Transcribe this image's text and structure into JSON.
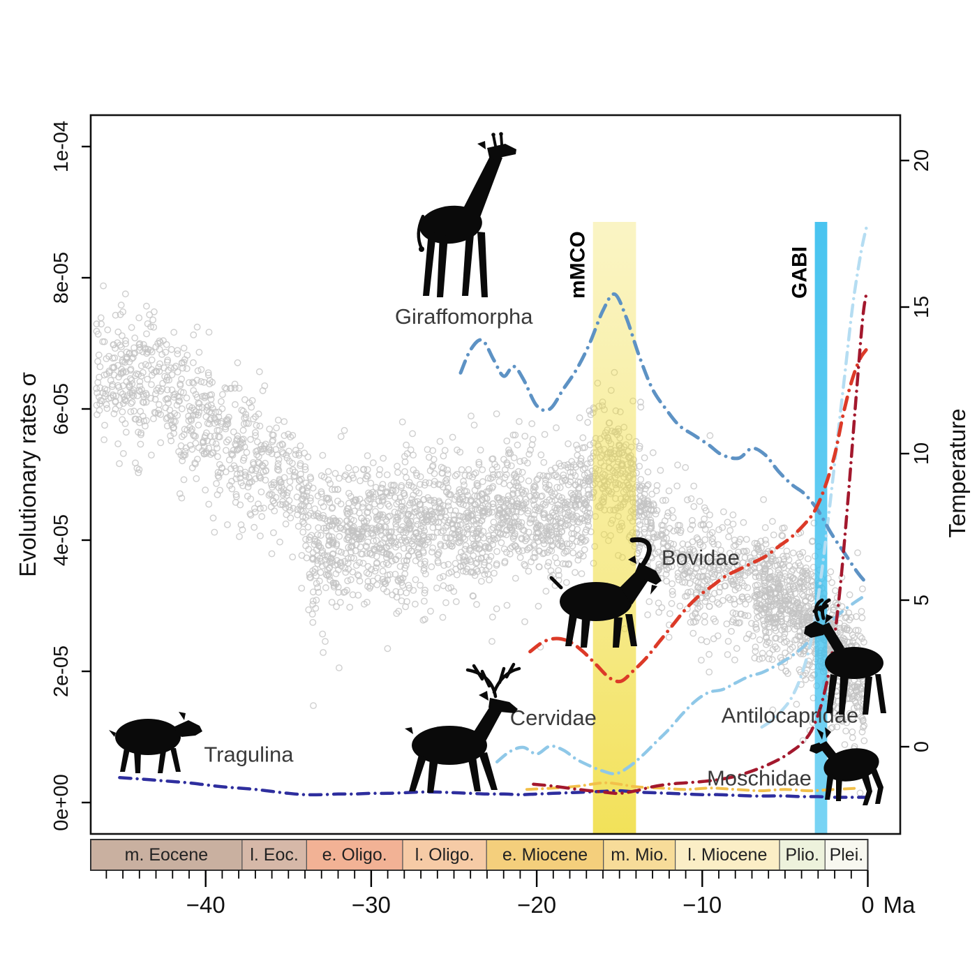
{
  "figure": {
    "x_axis": {
      "tick_labels": [
        "−40",
        "−30",
        "−20",
        "−10",
        "0"
      ],
      "tick_values": [
        -40,
        -30,
        -20,
        -10,
        0
      ],
      "unit_label": "Ma",
      "minor_tick_every_ma": 1
    },
    "y_left_axis": {
      "title": "Evolutionary rates σ",
      "tick_labels": [
        "0e+00",
        "2e-05",
        "4e-05",
        "6e-05",
        "8e-05",
        "1e-04"
      ],
      "tick_values_e5": [
        0,
        2,
        4,
        6,
        8,
        10
      ]
    },
    "y_right_axis": {
      "title": "Temperature",
      "tick_labels": [
        "0",
        "5",
        "10",
        "15",
        "20"
      ],
      "tick_values": [
        0,
        5,
        10,
        15,
        20
      ]
    },
    "epoch_band": [
      {
        "label": "m. Eocene",
        "start_ma": -46.95,
        "end_ma": -37.8,
        "color": "#c9b0a0"
      },
      {
        "label": "l. Eoc.",
        "start_ma": -37.8,
        "end_ma": -33.9,
        "color": "#d6b8a8"
      },
      {
        "label": "e. Oligo.",
        "start_ma": -33.9,
        "end_ma": -28.1,
        "color": "#f2b295"
      },
      {
        "label": "l. Oligo.",
        "start_ma": -28.1,
        "end_ma": -23.03,
        "color": "#f6cba6"
      },
      {
        "label": "e. Miocene",
        "start_ma": -23.03,
        "end_ma": -15.97,
        "color": "#f4cf7c"
      },
      {
        "label": "m. Mio.",
        "start_ma": -15.97,
        "end_ma": -11.63,
        "color": "#f7dc99"
      },
      {
        "label": "l. Miocene",
        "start_ma": -11.63,
        "end_ma": -5.33,
        "color": "#fbeec6"
      },
      {
        "label": "Plio.",
        "start_ma": -5.33,
        "end_ma": -2.58,
        "color": "#edf2dc"
      },
      {
        "label": "Plei.",
        "start_ma": -2.58,
        "end_ma": 0,
        "color": "#f8f8f0"
      }
    ],
    "events": [
      {
        "label": "mMCO",
        "start_ma": -16.6,
        "end_ma": -14.0,
        "color": "#f0dc3c"
      },
      {
        "label": "GABI",
        "start_ma": -3.2,
        "end_ma": -2.45,
        "color": "#3fc1ef"
      }
    ]
  },
  "chart_data": {
    "type": "scatter+line",
    "xlabel": "Ma",
    "ylabel_left": "Evolutionary rates σ",
    "ylabel_right": "Temperature",
    "x_range_ma": [
      -46.95,
      1.96
    ],
    "y_left_range_e5": [
      -0.48,
      10.48
    ],
    "y_right_range_c": [
      -2.98,
      21.55
    ],
    "scatter": {
      "marker": "open-circle",
      "color": "#c3c3c3",
      "count_main": 2600,
      "count_mid_extra": 700,
      "count_right_extra": 500,
      "noise_sd_c": 1.1,
      "temperature_trend_ma_c": [
        [
          -46.9,
          12.0
        ],
        [
          -46,
          12.3
        ],
        [
          -45,
          12.6
        ],
        [
          -44,
          12.2
        ],
        [
          -43.5,
          13.0
        ],
        [
          -43,
          12.4
        ],
        [
          -42,
          12.0
        ],
        [
          -41,
          11.4
        ],
        [
          -40,
          11.0
        ],
        [
          -39,
          10.5
        ],
        [
          -38.5,
          10.8
        ],
        [
          -38,
          10.1
        ],
        [
          -37,
          9.7
        ],
        [
          -36,
          9.4
        ],
        [
          -35,
          9.4
        ],
        [
          -34.5,
          9.0
        ],
        [
          -34,
          8.0
        ],
        [
          -33.6,
          6.6
        ],
        [
          -33,
          6.9
        ],
        [
          -32,
          7.1
        ],
        [
          -31,
          7.3
        ],
        [
          -30,
          7.4
        ],
        [
          -29,
          7.2
        ],
        [
          -28,
          7.4
        ],
        [
          -27,
          7.6
        ],
        [
          -26,
          7.9
        ],
        [
          -25,
          7.9
        ],
        [
          -24,
          7.6
        ],
        [
          -23,
          7.4
        ],
        [
          -22,
          7.9
        ],
        [
          -21,
          8.1
        ],
        [
          -20,
          7.9
        ],
        [
          -19,
          7.6
        ],
        [
          -18,
          7.9
        ],
        [
          -17,
          8.6
        ],
        [
          -16.5,
          9.2
        ],
        [
          -16,
          9.5
        ],
        [
          -15.5,
          9.6
        ],
        [
          -15,
          9.4
        ],
        [
          -14.5,
          9.0
        ],
        [
          -14,
          8.6
        ],
        [
          -13.5,
          7.9
        ],
        [
          -13,
          7.3
        ],
        [
          -12.5,
          6.9
        ],
        [
          -12,
          6.6
        ],
        [
          -11,
          6.3
        ],
        [
          -10,
          6.1
        ],
        [
          -9,
          5.9
        ],
        [
          -8,
          5.6
        ],
        [
          -7,
          5.4
        ],
        [
          -6,
          5.2
        ],
        [
          -5,
          5.0
        ],
        [
          -4.5,
          4.8
        ],
        [
          -4,
          4.6
        ],
        [
          -3.5,
          4.3
        ],
        [
          -3,
          4.0
        ],
        [
          -2.5,
          3.6
        ],
        [
          -2,
          3.2
        ],
        [
          -1.5,
          2.9
        ],
        [
          -1,
          2.6
        ],
        [
          -0.5,
          2.3
        ],
        [
          0,
          2.1
        ]
      ]
    },
    "series": [
      {
        "name": "Tragulina",
        "icon": "tragulid-silhouette",
        "color": "#2e2e9e",
        "width": 4.5,
        "label_pos": {
          "ma": -37.4,
          "rate_e5": 0.62
        },
        "points_ma_rate_e5": [
          [
            -45.2,
            0.38
          ],
          [
            -44,
            0.36
          ],
          [
            -43,
            0.34
          ],
          [
            -42,
            0.32
          ],
          [
            -41,
            0.3
          ],
          [
            -40,
            0.27
          ],
          [
            -39,
            0.24
          ],
          [
            -38,
            0.22
          ],
          [
            -37,
            0.2
          ],
          [
            -36,
            0.17
          ],
          [
            -35,
            0.14
          ],
          [
            -34,
            0.12
          ],
          [
            -33,
            0.12
          ],
          [
            -32,
            0.13
          ],
          [
            -31,
            0.13
          ],
          [
            -30,
            0.14
          ],
          [
            -29,
            0.14
          ],
          [
            -28,
            0.15
          ],
          [
            -27,
            0.16
          ],
          [
            -26,
            0.16
          ],
          [
            -25,
            0.15
          ],
          [
            -24,
            0.14
          ],
          [
            -23,
            0.13
          ],
          [
            -22,
            0.13
          ],
          [
            -21,
            0.12
          ],
          [
            -20,
            0.13
          ],
          [
            -19,
            0.14
          ],
          [
            -18,
            0.15
          ],
          [
            -17,
            0.16
          ],
          [
            -16,
            0.17
          ],
          [
            -15,
            0.18
          ],
          [
            -14,
            0.16
          ],
          [
            -13,
            0.15
          ],
          [
            -12,
            0.14
          ],
          [
            -11,
            0.13
          ],
          [
            -10,
            0.12
          ],
          [
            -9,
            0.12
          ],
          [
            -8,
            0.11
          ],
          [
            -7,
            0.1
          ],
          [
            -6,
            0.1
          ],
          [
            -5,
            0.1
          ],
          [
            -4,
            0.09
          ],
          [
            -3,
            0.09
          ],
          [
            -2,
            0.08
          ],
          [
            -1,
            0.08
          ],
          [
            -0.1,
            0.08
          ]
        ]
      },
      {
        "name": "",
        "icon": "",
        "color": "#f2c04a",
        "width": 4,
        "points_ma_rate_e5": [
          [
            -20.6,
            0.2
          ],
          [
            -19,
            0.22
          ],
          [
            -17.5,
            0.25
          ],
          [
            -16,
            0.3
          ],
          [
            -15,
            0.28
          ],
          [
            -14,
            0.24
          ],
          [
            -12.5,
            0.22
          ],
          [
            -11,
            0.2
          ],
          [
            -9.5,
            0.22
          ],
          [
            -8,
            0.2
          ],
          [
            -6.5,
            0.18
          ],
          [
            -5,
            0.2
          ],
          [
            -3.5,
            0.18
          ],
          [
            -2,
            0.2
          ],
          [
            -0.5,
            0.22
          ]
        ]
      },
      {
        "name": "Cervidae",
        "icon": "deer-silhouette",
        "color": "#8fc8e8",
        "width": 4.5,
        "label_pos": {
          "ma": -19.0,
          "rate_e5": 1.18
        },
        "points_ma_rate_e5": [
          [
            -22.4,
            0.62
          ],
          [
            -21.6,
            0.78
          ],
          [
            -20.8,
            0.84
          ],
          [
            -20.0,
            0.74
          ],
          [
            -19.2,
            0.86
          ],
          [
            -18.4,
            0.8
          ],
          [
            -17.6,
            0.66
          ],
          [
            -16.8,
            0.56
          ],
          [
            -16.0,
            0.48
          ],
          [
            -15.2,
            0.44
          ],
          [
            -14.4,
            0.55
          ],
          [
            -13.6,
            0.72
          ],
          [
            -12.8,
            0.92
          ],
          [
            -12.0,
            1.12
          ],
          [
            -11.2,
            1.35
          ],
          [
            -10.4,
            1.55
          ],
          [
            -9.6,
            1.68
          ],
          [
            -8.8,
            1.72
          ],
          [
            -8.0,
            1.82
          ],
          [
            -7.2,
            1.92
          ],
          [
            -6.4,
            1.98
          ],
          [
            -5.6,
            2.08
          ],
          [
            -4.8,
            2.2
          ],
          [
            -4.0,
            2.35
          ],
          [
            -3.2,
            2.55
          ],
          [
            -2.4,
            2.72
          ],
          [
            -1.6,
            2.9
          ],
          [
            -0.8,
            3.05
          ],
          [
            -0.2,
            3.15
          ]
        ]
      },
      {
        "name": "Antilocapridae",
        "icon": "pronghorn-silhouette",
        "color": "#b5ddf2",
        "width": 4.5,
        "label_pos": {
          "ma": -4.7,
          "rate_e5": 1.22
        },
        "points_ma_rate_e5": [
          [
            -6.4,
            1.15
          ],
          [
            -5.8,
            1.25
          ],
          [
            -5.2,
            1.4
          ],
          [
            -4.6,
            1.6
          ],
          [
            -4.0,
            1.95
          ],
          [
            -3.4,
            2.5
          ],
          [
            -2.9,
            3.3
          ],
          [
            -2.4,
            4.3
          ],
          [
            -1.9,
            5.4
          ],
          [
            -1.4,
            6.5
          ],
          [
            -0.9,
            7.6
          ],
          [
            -0.4,
            8.4
          ],
          [
            -0.05,
            8.8
          ]
        ]
      },
      {
        "name": "Giraffomorpha",
        "icon": "giraffe-silhouette",
        "color": "#5d92c4",
        "width": 5,
        "label_pos": {
          "ma": -24.4,
          "rate_e5": 7.3
        },
        "points_ma_rate_e5": [
          [
            -24.6,
            6.55
          ],
          [
            -24.0,
            6.9
          ],
          [
            -23.3,
            7.05
          ],
          [
            -22.6,
            6.75
          ],
          [
            -22.0,
            6.5
          ],
          [
            -21.4,
            6.65
          ],
          [
            -20.8,
            6.45
          ],
          [
            -20.0,
            6.05
          ],
          [
            -19.2,
            6.0
          ],
          [
            -18.4,
            6.3
          ],
          [
            -17.6,
            6.6
          ],
          [
            -16.8,
            7.0
          ],
          [
            -16.0,
            7.5
          ],
          [
            -15.3,
            7.75
          ],
          [
            -14.6,
            7.4
          ],
          [
            -13.8,
            6.8
          ],
          [
            -13.0,
            6.3
          ],
          [
            -12.2,
            6.0
          ],
          [
            -11.4,
            5.75
          ],
          [
            -10.5,
            5.6
          ],
          [
            -9.6,
            5.45
          ],
          [
            -8.8,
            5.3
          ],
          [
            -7.8,
            5.25
          ],
          [
            -7.0,
            5.4
          ],
          [
            -6.2,
            5.3
          ],
          [
            -5.4,
            5.05
          ],
          [
            -4.6,
            4.85
          ],
          [
            -3.8,
            4.7
          ],
          [
            -3.0,
            4.45
          ],
          [
            -2.2,
            4.1
          ],
          [
            -1.4,
            3.8
          ],
          [
            -0.6,
            3.5
          ],
          [
            -0.1,
            3.35
          ]
        ]
      },
      {
        "name": "Bovidae",
        "icon": "bovid-silhouette",
        "color": "#dc3a28",
        "width": 5,
        "label_pos": {
          "ma": -10.1,
          "rate_e5": 3.62
        },
        "points_ma_rate_e5": [
          [
            -20.4,
            2.3
          ],
          [
            -19.6,
            2.45
          ],
          [
            -18.8,
            2.5
          ],
          [
            -18.0,
            2.45
          ],
          [
            -17.2,
            2.3
          ],
          [
            -16.4,
            2.1
          ],
          [
            -15.6,
            1.9
          ],
          [
            -14.9,
            1.85
          ],
          [
            -14.2,
            2.0
          ],
          [
            -13.4,
            2.2
          ],
          [
            -12.6,
            2.45
          ],
          [
            -11.8,
            2.7
          ],
          [
            -11.0,
            2.95
          ],
          [
            -10.2,
            3.15
          ],
          [
            -9.4,
            3.3
          ],
          [
            -8.6,
            3.45
          ],
          [
            -7.8,
            3.55
          ],
          [
            -7.0,
            3.65
          ],
          [
            -6.2,
            3.75
          ],
          [
            -5.4,
            3.9
          ],
          [
            -4.6,
            4.05
          ],
          [
            -3.8,
            4.25
          ],
          [
            -3.2,
            4.45
          ],
          [
            -2.6,
            4.8
          ],
          [
            -2.0,
            5.3
          ],
          [
            -1.5,
            5.9
          ],
          [
            -1.0,
            6.4
          ],
          [
            -0.5,
            6.75
          ],
          [
            -0.1,
            6.9
          ]
        ]
      },
      {
        "name": "Moschidae",
        "icon": "muskdeer-silhouette",
        "color": "#a3182d",
        "width": 4.5,
        "label_pos": {
          "ma": -6.56,
          "rate_e5": 0.26
        },
        "points_ma_rate_e5": [
          [
            -20.2,
            0.28
          ],
          [
            -19,
            0.25
          ],
          [
            -17.5,
            0.2
          ],
          [
            -16,
            0.16
          ],
          [
            -15,
            0.14
          ],
          [
            -14,
            0.18
          ],
          [
            -13,
            0.24
          ],
          [
            -12,
            0.28
          ],
          [
            -11,
            0.3
          ],
          [
            -10,
            0.32
          ],
          [
            -9,
            0.35
          ],
          [
            -8,
            0.4
          ],
          [
            -7,
            0.48
          ],
          [
            -6,
            0.58
          ],
          [
            -5.2,
            0.68
          ],
          [
            -4.6,
            0.78
          ],
          [
            -4.0,
            0.9
          ],
          [
            -3.4,
            1.1
          ],
          [
            -2.8,
            1.5
          ],
          [
            -2.2,
            2.2
          ],
          [
            -1.7,
            3.2
          ],
          [
            -1.2,
            4.6
          ],
          [
            -0.7,
            6.2
          ],
          [
            -0.3,
            7.4
          ],
          [
            -0.05,
            7.8
          ]
        ]
      }
    ]
  }
}
